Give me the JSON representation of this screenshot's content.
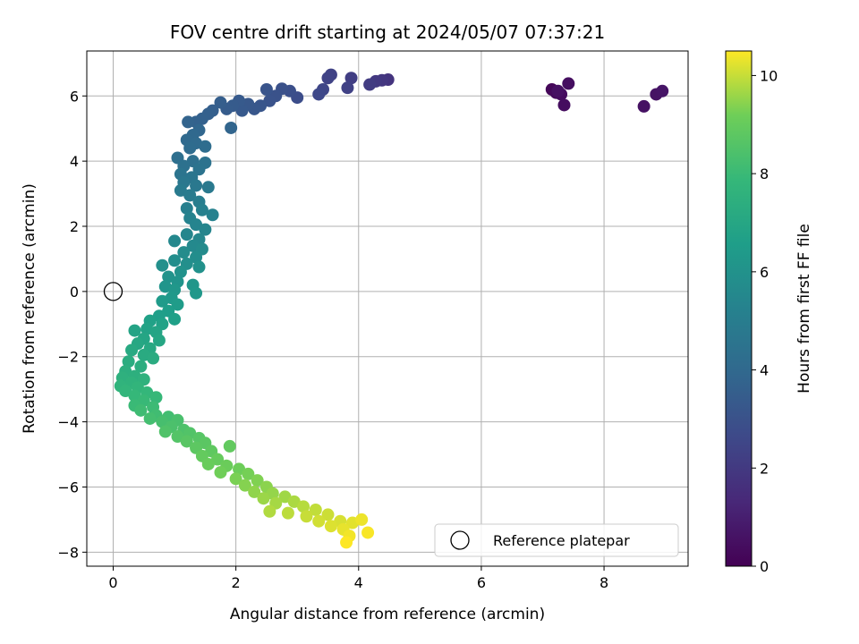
{
  "chart_data": {
    "type": "scatter",
    "title": "FOV centre drift starting at 2024/05/07 07:37:21",
    "xlabel": "Angular distance from reference (arcmin)",
    "ylabel": "Rotation from reference (arcmin)",
    "xlim": [
      -0.43,
      9.37
    ],
    "ylim": [
      -8.43,
      7.38
    ],
    "xticks": [
      0,
      2,
      4,
      6,
      8
    ],
    "yticks": [
      -8,
      -6,
      -4,
      -2,
      0,
      2,
      4,
      6
    ],
    "grid": true,
    "colorbar": {
      "label": "Hours from first FF file",
      "colormap": "viridis",
      "range": [
        0,
        10.5
      ],
      "ticks": [
        0,
        2,
        4,
        6,
        8,
        10
      ]
    },
    "legend": {
      "position": "lower-right",
      "entries": [
        "Reference platepar"
      ]
    },
    "reference_point": {
      "x": 0,
      "y": 0
    },
    "points": [
      {
        "x": 7.15,
        "y": 6.2,
        "t": 0.2
      },
      {
        "x": 7.22,
        "y": 6.1,
        "t": 0.3
      },
      {
        "x": 7.3,
        "y": 6.05,
        "t": 0.35
      },
      {
        "x": 7.35,
        "y": 5.72,
        "t": 0.4
      },
      {
        "x": 7.42,
        "y": 6.38,
        "t": 0.45
      },
      {
        "x": 7.25,
        "y": 6.15,
        "t": 0.5
      },
      {
        "x": 8.65,
        "y": 5.68,
        "t": 0.55
      },
      {
        "x": 8.85,
        "y": 6.05,
        "t": 0.6
      },
      {
        "x": 8.95,
        "y": 6.15,
        "t": 0.65
      },
      {
        "x": 4.48,
        "y": 6.5,
        "t": 1.8
      },
      {
        "x": 4.38,
        "y": 6.48,
        "t": 1.9
      },
      {
        "x": 4.28,
        "y": 6.45,
        "t": 2.0
      },
      {
        "x": 4.18,
        "y": 6.35,
        "t": 2.1
      },
      {
        "x": 3.88,
        "y": 6.55,
        "t": 2.2
      },
      {
        "x": 3.82,
        "y": 6.25,
        "t": 2.3
      },
      {
        "x": 3.55,
        "y": 6.65,
        "t": 2.35
      },
      {
        "x": 3.5,
        "y": 6.55,
        "t": 2.4
      },
      {
        "x": 3.42,
        "y": 6.2,
        "t": 2.5
      },
      {
        "x": 3.35,
        "y": 6.05,
        "t": 2.6
      },
      {
        "x": 3.0,
        "y": 5.95,
        "t": 2.8
      },
      {
        "x": 2.88,
        "y": 6.15,
        "t": 2.9
      },
      {
        "x": 2.75,
        "y": 6.22,
        "t": 2.95
      },
      {
        "x": 2.65,
        "y": 6.0,
        "t": 3.0
      },
      {
        "x": 2.55,
        "y": 5.85,
        "t": 3.05
      },
      {
        "x": 2.5,
        "y": 6.2,
        "t": 3.1
      },
      {
        "x": 2.4,
        "y": 5.7,
        "t": 3.15
      },
      {
        "x": 2.3,
        "y": 5.6,
        "t": 3.2
      },
      {
        "x": 2.2,
        "y": 5.75,
        "t": 3.25
      },
      {
        "x": 2.1,
        "y": 5.55,
        "t": 3.3
      },
      {
        "x": 2.05,
        "y": 5.85,
        "t": 3.35
      },
      {
        "x": 1.95,
        "y": 5.7,
        "t": 3.4
      },
      {
        "x": 1.85,
        "y": 5.6,
        "t": 3.45
      },
      {
        "x": 1.75,
        "y": 5.8,
        "t": 3.5
      },
      {
        "x": 1.62,
        "y": 5.55,
        "t": 3.55
      },
      {
        "x": 1.55,
        "y": 5.45,
        "t": 3.6
      },
      {
        "x": 1.45,
        "y": 5.3,
        "t": 3.65
      },
      {
        "x": 1.35,
        "y": 5.2,
        "t": 3.7
      },
      {
        "x": 1.22,
        "y": 5.2,
        "t": 3.75
      },
      {
        "x": 1.92,
        "y": 5.02,
        "t": 3.8
      },
      {
        "x": 1.4,
        "y": 4.95,
        "t": 3.9
      },
      {
        "x": 1.3,
        "y": 4.8,
        "t": 4.0
      },
      {
        "x": 1.2,
        "y": 4.65,
        "t": 4.05
      },
      {
        "x": 1.35,
        "y": 4.55,
        "t": 4.1
      },
      {
        "x": 1.25,
        "y": 4.4,
        "t": 4.15
      },
      {
        "x": 1.5,
        "y": 4.45,
        "t": 4.2
      },
      {
        "x": 1.05,
        "y": 4.1,
        "t": 4.3
      },
      {
        "x": 1.3,
        "y": 4.0,
        "t": 4.35
      },
      {
        "x": 1.15,
        "y": 3.85,
        "t": 4.4
      },
      {
        "x": 1.5,
        "y": 3.95,
        "t": 4.45
      },
      {
        "x": 1.4,
        "y": 3.75,
        "t": 4.5
      },
      {
        "x": 1.1,
        "y": 3.6,
        "t": 4.55
      },
      {
        "x": 1.28,
        "y": 3.5,
        "t": 4.6
      },
      {
        "x": 1.15,
        "y": 3.35,
        "t": 4.7
      },
      {
        "x": 1.35,
        "y": 3.25,
        "t": 4.75
      },
      {
        "x": 1.55,
        "y": 3.2,
        "t": 4.8
      },
      {
        "x": 1.1,
        "y": 3.1,
        "t": 4.85
      },
      {
        "x": 1.25,
        "y": 2.95,
        "t": 4.9
      },
      {
        "x": 1.4,
        "y": 2.75,
        "t": 5.0
      },
      {
        "x": 1.2,
        "y": 2.55,
        "t": 5.1
      },
      {
        "x": 1.45,
        "y": 2.5,
        "t": 5.15
      },
      {
        "x": 1.62,
        "y": 2.35,
        "t": 5.2
      },
      {
        "x": 1.25,
        "y": 2.25,
        "t": 5.25
      },
      {
        "x": 1.35,
        "y": 2.05,
        "t": 5.35
      },
      {
        "x": 1.5,
        "y": 1.9,
        "t": 5.4
      },
      {
        "x": 1.2,
        "y": 1.75,
        "t": 5.45
      },
      {
        "x": 1.4,
        "y": 1.6,
        "t": 5.5
      },
      {
        "x": 1.0,
        "y": 1.55,
        "t": 5.55
      },
      {
        "x": 1.3,
        "y": 1.4,
        "t": 5.6
      },
      {
        "x": 1.45,
        "y": 1.3,
        "t": 5.65
      },
      {
        "x": 1.15,
        "y": 1.2,
        "t": 5.7
      },
      {
        "x": 1.35,
        "y": 1.05,
        "t": 5.75
      },
      {
        "x": 1.0,
        "y": 0.95,
        "t": 5.8
      },
      {
        "x": 1.2,
        "y": 0.85,
        "t": 5.85
      },
      {
        "x": 0.8,
        "y": 0.8,
        "t": 5.9
      },
      {
        "x": 1.4,
        "y": 0.75,
        "t": 5.95
      },
      {
        "x": 1.1,
        "y": 0.6,
        "t": 6.0
      },
      {
        "x": 0.9,
        "y": 0.45,
        "t": 6.05
      },
      {
        "x": 1.05,
        "y": 0.3,
        "t": 6.1
      },
      {
        "x": 0.85,
        "y": 0.15,
        "t": 6.15
      },
      {
        "x": 1.3,
        "y": 0.2,
        "t": 6.2
      },
      {
        "x": 1.0,
        "y": 0.05,
        "t": 6.25
      },
      {
        "x": 1.35,
        "y": -0.05,
        "t": 6.3
      },
      {
        "x": 0.95,
        "y": -0.2,
        "t": 6.35
      },
      {
        "x": 0.8,
        "y": -0.3,
        "t": 6.4
      },
      {
        "x": 1.05,
        "y": -0.4,
        "t": 6.45
      },
      {
        "x": 0.9,
        "y": -0.6,
        "t": 6.55
      },
      {
        "x": 0.75,
        "y": -0.75,
        "t": 6.6
      },
      {
        "x": 1.0,
        "y": -0.85,
        "t": 6.65
      },
      {
        "x": 0.6,
        "y": -0.9,
        "t": 6.7
      },
      {
        "x": 0.8,
        "y": -1.0,
        "t": 6.75
      },
      {
        "x": 0.55,
        "y": -1.15,
        "t": 6.8
      },
      {
        "x": 0.35,
        "y": -1.2,
        "t": 6.85
      },
      {
        "x": 0.7,
        "y": -1.25,
        "t": 6.9
      },
      {
        "x": 0.5,
        "y": -1.45,
        "t": 6.95
      },
      {
        "x": 0.75,
        "y": -1.5,
        "t": 7.0
      },
      {
        "x": 0.4,
        "y": -1.6,
        "t": 7.05
      },
      {
        "x": 0.6,
        "y": -1.75,
        "t": 7.1
      },
      {
        "x": 0.3,
        "y": -1.8,
        "t": 7.15
      },
      {
        "x": 0.5,
        "y": -1.95,
        "t": 7.2
      },
      {
        "x": 0.65,
        "y": -2.05,
        "t": 7.25
      },
      {
        "x": 0.25,
        "y": -2.15,
        "t": 7.3
      },
      {
        "x": 0.45,
        "y": -2.3,
        "t": 7.35
      },
      {
        "x": 0.2,
        "y": -2.45,
        "t": 7.4
      },
      {
        "x": 0.35,
        "y": -2.6,
        "t": 7.45
      },
      {
        "x": 0.15,
        "y": -2.65,
        "t": 7.5
      },
      {
        "x": 0.5,
        "y": -2.7,
        "t": 7.55
      },
      {
        "x": 0.3,
        "y": -2.8,
        "t": 7.6
      },
      {
        "x": 0.12,
        "y": -2.9,
        "t": 7.65
      },
      {
        "x": 0.4,
        "y": -2.95,
        "t": 7.7
      },
      {
        "x": 0.2,
        "y": -3.05,
        "t": 7.75
      },
      {
        "x": 0.55,
        "y": -3.1,
        "t": 7.8
      },
      {
        "x": 0.35,
        "y": -3.2,
        "t": 7.85
      },
      {
        "x": 0.7,
        "y": -3.25,
        "t": 7.9
      },
      {
        "x": 0.5,
        "y": -3.35,
        "t": 7.95
      },
      {
        "x": 0.35,
        "y": -3.5,
        "t": 8.0
      },
      {
        "x": 0.65,
        "y": -3.55,
        "t": 8.05
      },
      {
        "x": 0.45,
        "y": -3.65,
        "t": 8.1
      },
      {
        "x": 0.7,
        "y": -3.8,
        "t": 8.15
      },
      {
        "x": 0.9,
        "y": -3.85,
        "t": 8.2
      },
      {
        "x": 0.6,
        "y": -3.9,
        "t": 8.25
      },
      {
        "x": 0.8,
        "y": -4.0,
        "t": 8.3
      },
      {
        "x": 1.05,
        "y": -3.95,
        "t": 8.35
      },
      {
        "x": 0.95,
        "y": -4.15,
        "t": 8.4
      },
      {
        "x": 1.15,
        "y": -4.25,
        "t": 8.45
      },
      {
        "x": 0.85,
        "y": -4.3,
        "t": 8.5
      },
      {
        "x": 1.25,
        "y": -4.35,
        "t": 8.55
      },
      {
        "x": 1.05,
        "y": -4.45,
        "t": 8.6
      },
      {
        "x": 1.4,
        "y": -4.5,
        "t": 8.65
      },
      {
        "x": 1.2,
        "y": -4.6,
        "t": 8.7
      },
      {
        "x": 1.5,
        "y": -4.65,
        "t": 8.75
      },
      {
        "x": 1.35,
        "y": -4.8,
        "t": 8.8
      },
      {
        "x": 1.6,
        "y": -4.9,
        "t": 8.85
      },
      {
        "x": 1.9,
        "y": -4.75,
        "t": 8.9
      },
      {
        "x": 1.45,
        "y": -5.05,
        "t": 8.95
      },
      {
        "x": 1.7,
        "y": -5.15,
        "t": 9.0
      },
      {
        "x": 1.55,
        "y": -5.3,
        "t": 9.05
      },
      {
        "x": 1.85,
        "y": -5.35,
        "t": 9.1
      },
      {
        "x": 2.05,
        "y": -5.45,
        "t": 9.15
      },
      {
        "x": 1.75,
        "y": -5.55,
        "t": 9.2
      },
      {
        "x": 2.2,
        "y": -5.6,
        "t": 9.25
      },
      {
        "x": 2.0,
        "y": -5.75,
        "t": 9.3
      },
      {
        "x": 2.35,
        "y": -5.8,
        "t": 9.35
      },
      {
        "x": 2.15,
        "y": -5.95,
        "t": 9.4
      },
      {
        "x": 2.5,
        "y": -6.0,
        "t": 9.45
      },
      {
        "x": 2.3,
        "y": -6.15,
        "t": 9.5
      },
      {
        "x": 2.6,
        "y": -6.2,
        "t": 9.55
      },
      {
        "x": 2.45,
        "y": -6.35,
        "t": 9.6
      },
      {
        "x": 2.8,
        "y": -6.3,
        "t": 9.65
      },
      {
        "x": 2.65,
        "y": -6.5,
        "t": 9.7
      },
      {
        "x": 2.95,
        "y": -6.45,
        "t": 9.75
      },
      {
        "x": 2.55,
        "y": -6.75,
        "t": 9.8
      },
      {
        "x": 3.1,
        "y": -6.6,
        "t": 9.85
      },
      {
        "x": 2.85,
        "y": -6.8,
        "t": 9.9
      },
      {
        "x": 3.3,
        "y": -6.7,
        "t": 9.95
      },
      {
        "x": 3.15,
        "y": -6.9,
        "t": 10.0
      },
      {
        "x": 3.5,
        "y": -6.85,
        "t": 10.05
      },
      {
        "x": 3.35,
        "y": -7.05,
        "t": 10.1
      },
      {
        "x": 3.7,
        "y": -7.05,
        "t": 10.15
      },
      {
        "x": 3.55,
        "y": -7.2,
        "t": 10.2
      },
      {
        "x": 3.9,
        "y": -7.1,
        "t": 10.25
      },
      {
        "x": 3.75,
        "y": -7.3,
        "t": 10.3
      },
      {
        "x": 4.05,
        "y": -7.0,
        "t": 10.35
      },
      {
        "x": 3.85,
        "y": -7.5,
        "t": 10.4
      },
      {
        "x": 4.15,
        "y": -7.4,
        "t": 10.45
      },
      {
        "x": 3.8,
        "y": -7.7,
        "t": 10.5
      }
    ]
  }
}
